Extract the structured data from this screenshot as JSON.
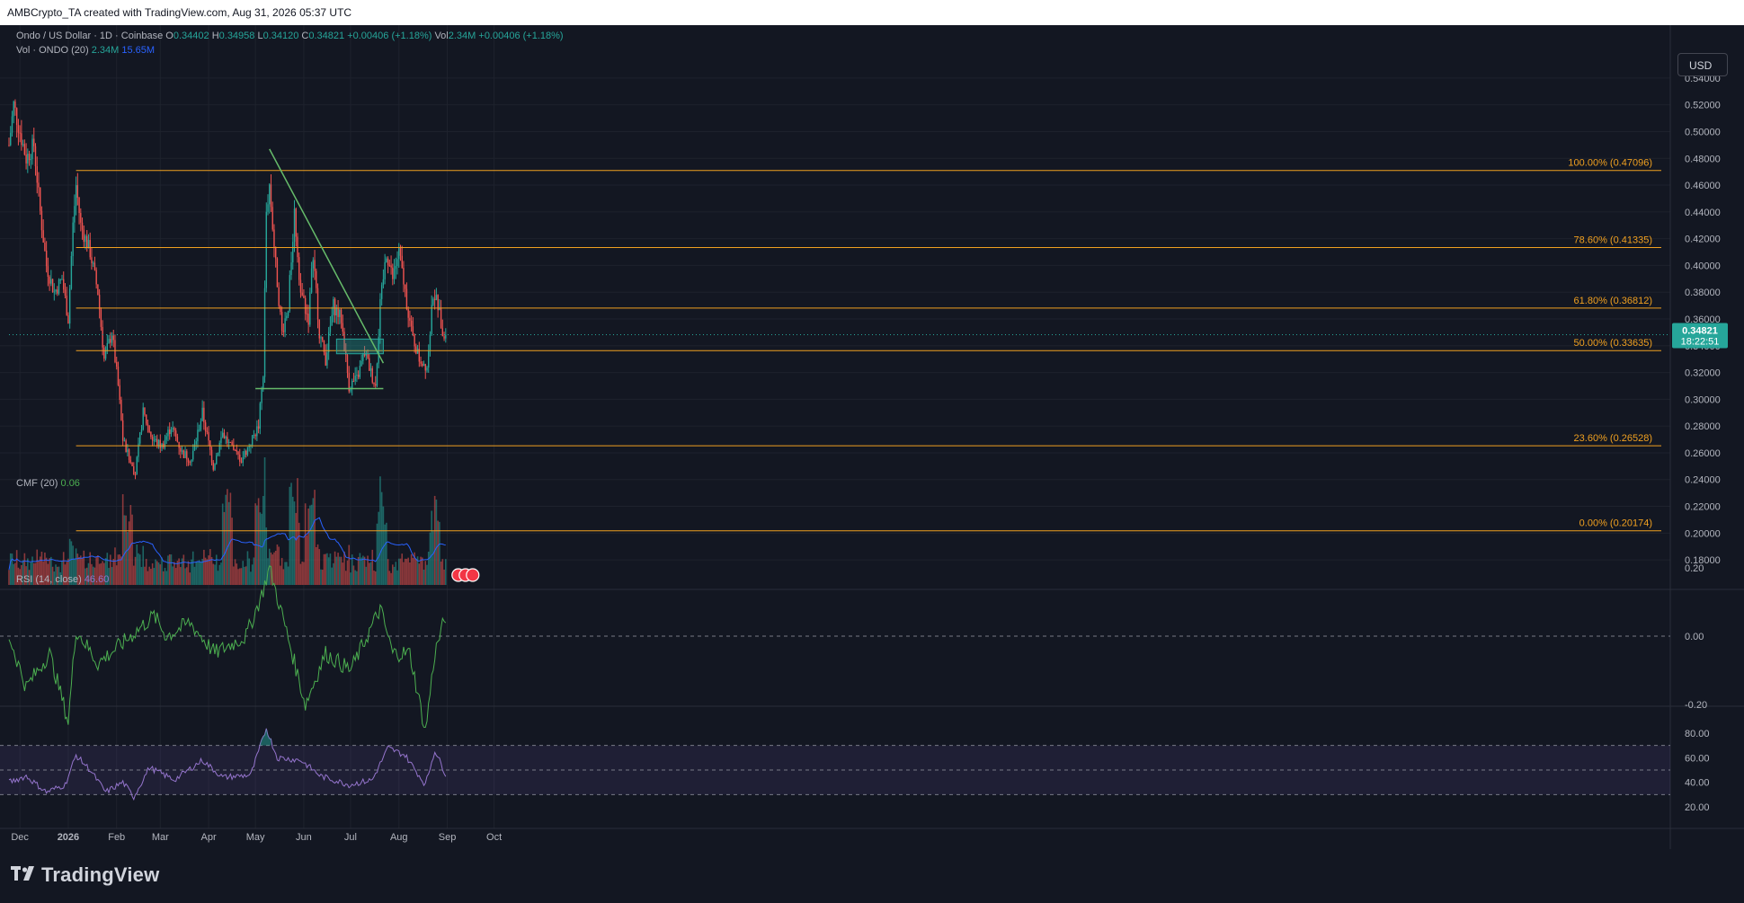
{
  "header": {
    "attribution": "AMBCrypto_TA created with TradingView.com, Aug 31, 2026 05:37 UTC"
  },
  "legend": {
    "symbol": "Ondo / US Dollar · 1D · Coinbase",
    "o_label": "O",
    "o": "0.34402",
    "h_label": "H",
    "h": "0.34958",
    "l_label": "L",
    "l": "0.34120",
    "c_label": "C",
    "c": "0.34821",
    "change": "+0.00406 (+1.18%)",
    "vol_label": "Vol",
    "vol": "2.34M",
    "vol_change": "+0.00406 (+1.18%)",
    "vol_ma_label": "Vol · ONDO (20)",
    "vol_ma_1": "2.34M",
    "vol_ma_2": "15.65M",
    "cmf_label": "CMF (20)",
    "cmf_value": "0.06",
    "rsi_label": "RSI (14, close)",
    "rsi_value": "46.60"
  },
  "currency_button": "USD",
  "price_badge": {
    "price": "0.34821",
    "countdown": "18:22:51"
  },
  "brand": {
    "name": "TradingView"
  },
  "colors": {
    "background": "#131722",
    "up": "#26a69a",
    "down": "#ef5350",
    "fib": "#f0a020",
    "trendline": "#66bb6a",
    "volume_ma": "#2962ff",
    "cmf": "#4caf50",
    "rsi": "#9575cd"
  },
  "chart_data": [
    {
      "type": "candlestick",
      "title": "Ondo / US Dollar · 1D · Coinbase",
      "x_axis": {
        "tick_labels": [
          "Dec",
          "2026",
          "Feb",
          "Mar",
          "Apr",
          "May",
          "Jun",
          "Jul",
          "Aug",
          "Sep",
          "Oct"
        ],
        "range": [
          "2025-11-24",
          "2026-10-20"
        ]
      },
      "y_axis": {
        "range": [
          0.17,
          0.55
        ],
        "tick_labels": [
          "0.18000",
          "0.20000",
          "0.22000",
          "0.24000",
          "0.26000",
          "0.28000",
          "0.30000",
          "0.32000",
          "0.34000",
          "0.36000",
          "0.38000",
          "0.40000",
          "0.42000",
          "0.44000",
          "0.46000",
          "0.48000",
          "0.50000",
          "0.52000",
          "0.54000"
        ],
        "position": "right"
      },
      "grid": true,
      "last_close": 0.34821,
      "price_path": [
        {
          "date": "2025-11-24",
          "price": 0.49
        },
        {
          "date": "2025-11-27",
          "price": 0.52
        },
        {
          "date": "2025-12-01",
          "price": 0.5
        },
        {
          "date": "2025-12-05",
          "price": 0.48
        },
        {
          "date": "2025-12-10",
          "price": 0.49
        },
        {
          "date": "2025-12-14",
          "price": 0.44
        },
        {
          "date": "2025-12-18",
          "price": 0.4
        },
        {
          "date": "2025-12-23",
          "price": 0.38
        },
        {
          "date": "2025-12-28",
          "price": 0.39
        },
        {
          "date": "2026-01-01",
          "price": 0.36
        },
        {
          "date": "2026-01-04",
          "price": 0.43
        },
        {
          "date": "2026-01-06",
          "price": 0.46
        },
        {
          "date": "2026-01-09",
          "price": 0.43
        },
        {
          "date": "2026-01-15",
          "price": 0.41
        },
        {
          "date": "2026-01-20",
          "price": 0.38
        },
        {
          "date": "2026-01-24",
          "price": 0.33
        },
        {
          "date": "2026-01-29",
          "price": 0.35
        },
        {
          "date": "2026-02-02",
          "price": 0.31
        },
        {
          "date": "2026-02-05",
          "price": 0.27
        },
        {
          "date": "2026-02-09",
          "price": 0.255
        },
        {
          "date": "2026-02-13",
          "price": 0.245
        },
        {
          "date": "2026-02-18",
          "price": 0.29
        },
        {
          "date": "2026-02-24",
          "price": 0.27
        },
        {
          "date": "2026-03-02",
          "price": 0.265
        },
        {
          "date": "2026-03-08",
          "price": 0.28
        },
        {
          "date": "2026-03-15",
          "price": 0.26
        },
        {
          "date": "2026-03-21",
          "price": 0.255
        },
        {
          "date": "2026-03-28",
          "price": 0.29
        },
        {
          "date": "2026-04-04",
          "price": 0.25
        },
        {
          "date": "2026-04-10",
          "price": 0.275
        },
        {
          "date": "2026-04-16",
          "price": 0.262
        },
        {
          "date": "2026-04-22",
          "price": 0.255
        },
        {
          "date": "2026-04-28",
          "price": 0.268
        },
        {
          "date": "2026-05-03",
          "price": 0.28
        },
        {
          "date": "2026-05-06",
          "price": 0.32
        },
        {
          "date": "2026-05-08",
          "price": 0.44
        },
        {
          "date": "2026-05-10",
          "price": 0.46
        },
        {
          "date": "2026-05-14",
          "price": 0.4
        },
        {
          "date": "2026-05-18",
          "price": 0.35
        },
        {
          "date": "2026-05-22",
          "price": 0.37
        },
        {
          "date": "2026-05-26",
          "price": 0.44
        },
        {
          "date": "2026-05-30",
          "price": 0.38
        },
        {
          "date": "2026-06-04",
          "price": 0.36
        },
        {
          "date": "2026-06-07",
          "price": 0.41
        },
        {
          "date": "2026-06-11",
          "price": 0.35
        },
        {
          "date": "2026-06-15",
          "price": 0.33
        },
        {
          "date": "2026-06-20",
          "price": 0.37
        },
        {
          "date": "2026-06-25",
          "price": 0.36
        },
        {
          "date": "2026-06-30",
          "price": 0.31
        },
        {
          "date": "2026-07-05",
          "price": 0.315
        },
        {
          "date": "2026-07-10",
          "price": 0.335
        },
        {
          "date": "2026-07-14",
          "price": 0.32
        },
        {
          "date": "2026-07-17",
          "price": 0.31
        },
        {
          "date": "2026-07-20",
          "price": 0.37
        },
        {
          "date": "2026-07-24",
          "price": 0.41
        },
        {
          "date": "2026-07-28",
          "price": 0.39
        },
        {
          "date": "2026-08-01",
          "price": 0.41
        },
        {
          "date": "2026-08-05",
          "price": 0.38
        },
        {
          "date": "2026-08-09",
          "price": 0.35
        },
        {
          "date": "2026-08-14",
          "price": 0.33
        },
        {
          "date": "2026-08-19",
          "price": 0.325
        },
        {
          "date": "2026-08-23",
          "price": 0.38
        },
        {
          "date": "2026-08-26",
          "price": 0.37
        },
        {
          "date": "2026-08-29",
          "price": 0.35
        },
        {
          "date": "2026-08-31",
          "price": 0.34821
        }
      ],
      "fibonacci": [
        {
          "label": "100.00% (0.47096)",
          "price": 0.47096
        },
        {
          "label": "78.60% (0.41335)",
          "price": 0.41335
        },
        {
          "label": "61.80% (0.36812)",
          "price": 0.36812
        },
        {
          "label": "50.00% (0.33635)",
          "price": 0.33635
        },
        {
          "label": "23.60% (0.26528)",
          "price": 0.26528
        },
        {
          "label": "0.00% (0.20174)",
          "price": 0.20174
        }
      ],
      "fib_start": "2026-01-06",
      "trendline": {
        "from": {
          "date": "2026-05-10",
          "price": 0.487
        },
        "to": {
          "date": "2026-07-22",
          "price": 0.327
        }
      },
      "support": {
        "from": "2026-05-01",
        "to": "2026-07-22",
        "price": 0.308
      },
      "zone": {
        "from": "2026-06-22",
        "to": "2026-07-22",
        "low": 0.334,
        "high": 0.345
      }
    },
    {
      "type": "bar",
      "title": "Vol · ONDO (20)",
      "series": [
        {
          "name": "Volume",
          "last": "2.34M"
        },
        {
          "name": "MA",
          "last": "15.65M"
        }
      ],
      "spike_dates": [
        "2026-02-08",
        "2026-04-13",
        "2026-05-04",
        "2026-05-26",
        "2026-06-05",
        "2026-07-21",
        "2026-08-24"
      ]
    },
    {
      "type": "line",
      "title": "CMF (20)",
      "y_axis": {
        "range": [
          -0.3,
          0.25
        ],
        "tick_labels": [
          "0.20",
          "0.00",
          "-0.20"
        ]
      },
      "last": 0.06,
      "path": [
        {
          "date": "2025-11-24",
          "value": 0.0
        },
        {
          "date": "2025-12-05",
          "value": -0.15
        },
        {
          "date": "2025-12-20",
          "value": -0.05
        },
        {
          "date": "2026-01-01",
          "value": -0.25
        },
        {
          "date": "2026-01-06",
          "value": 0.02
        },
        {
          "date": "2026-01-20",
          "value": -0.08
        },
        {
          "date": "2026-02-05",
          "value": -0.02
        },
        {
          "date": "2026-02-25",
          "value": 0.06
        },
        {
          "date": "2026-03-05",
          "value": 0.0
        },
        {
          "date": "2026-03-20",
          "value": 0.04
        },
        {
          "date": "2026-04-05",
          "value": -0.05
        },
        {
          "date": "2026-04-25",
          "value": 0.0
        },
        {
          "date": "2026-05-05",
          "value": 0.12
        },
        {
          "date": "2026-05-10",
          "value": 0.2
        },
        {
          "date": "2026-05-20",
          "value": 0.03
        },
        {
          "date": "2026-06-02",
          "value": -0.2
        },
        {
          "date": "2026-06-15",
          "value": -0.05
        },
        {
          "date": "2026-07-01",
          "value": -0.1
        },
        {
          "date": "2026-07-20",
          "value": 0.08
        },
        {
          "date": "2026-07-28",
          "value": -0.05
        },
        {
          "date": "2026-08-08",
          "value": -0.05
        },
        {
          "date": "2026-08-18",
          "value": -0.28
        },
        {
          "date": "2026-08-24",
          "value": -0.05
        },
        {
          "date": "2026-08-31",
          "value": 0.06
        }
      ]
    },
    {
      "type": "line",
      "title": "RSI (14, close)",
      "y_axis": {
        "range": [
          20,
          90
        ],
        "tick_labels": [
          "80.00",
          "60.00",
          "40.00",
          "20.00"
        ]
      },
      "bands": {
        "upper": 70,
        "middle": 50,
        "lower": 30
      },
      "last": 46.6,
      "path": [
        {
          "date": "2025-11-24",
          "value": 40
        },
        {
          "date": "2025-12-05",
          "value": 45
        },
        {
          "date": "2025-12-18",
          "value": 32
        },
        {
          "date": "2025-12-30",
          "value": 38
        },
        {
          "date": "2026-01-06",
          "value": 62
        },
        {
          "date": "2026-01-15",
          "value": 50
        },
        {
          "date": "2026-01-25",
          "value": 32
        },
        {
          "date": "2026-02-05",
          "value": 40
        },
        {
          "date": "2026-02-12",
          "value": 28
        },
        {
          "date": "2026-02-22",
          "value": 52
        },
        {
          "date": "2026-03-10",
          "value": 42
        },
        {
          "date": "2026-03-28",
          "value": 58
        },
        {
          "date": "2026-04-10",
          "value": 44
        },
        {
          "date": "2026-04-28",
          "value": 46
        },
        {
          "date": "2026-05-08",
          "value": 84
        },
        {
          "date": "2026-05-15",
          "value": 60
        },
        {
          "date": "2026-05-30",
          "value": 58
        },
        {
          "date": "2026-06-12",
          "value": 45
        },
        {
          "date": "2026-06-30",
          "value": 38
        },
        {
          "date": "2026-07-15",
          "value": 42
        },
        {
          "date": "2026-07-25",
          "value": 68
        },
        {
          "date": "2026-08-05",
          "value": 62
        },
        {
          "date": "2026-08-18",
          "value": 38
        },
        {
          "date": "2026-08-24",
          "value": 66
        },
        {
          "date": "2026-08-31",
          "value": 46.6
        }
      ]
    }
  ]
}
